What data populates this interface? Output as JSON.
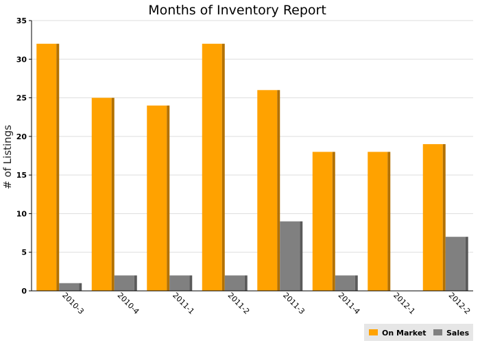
{
  "chart_data": {
    "type": "bar",
    "title": "Months of Inventory Report",
    "xlabel": "",
    "ylabel": "# of Listings",
    "ylim": [
      0,
      35
    ],
    "yticks": [
      0,
      5,
      10,
      15,
      20,
      25,
      30,
      35
    ],
    "categories": [
      "2010-3",
      "2010-4",
      "2011-1",
      "2011-2",
      "2011-3",
      "2011-4",
      "2012-1",
      "2012-2"
    ],
    "series": [
      {
        "name": "On Market",
        "color": "#ffa200",
        "values": [
          32,
          25,
          24,
          32,
          26,
          18,
          18,
          19
        ]
      },
      {
        "name": "Sales",
        "color": "#808080",
        "values": [
          1,
          2,
          2,
          2,
          9,
          2,
          0,
          7
        ]
      }
    ],
    "grid": true,
    "legend_position": "bottom-right"
  }
}
